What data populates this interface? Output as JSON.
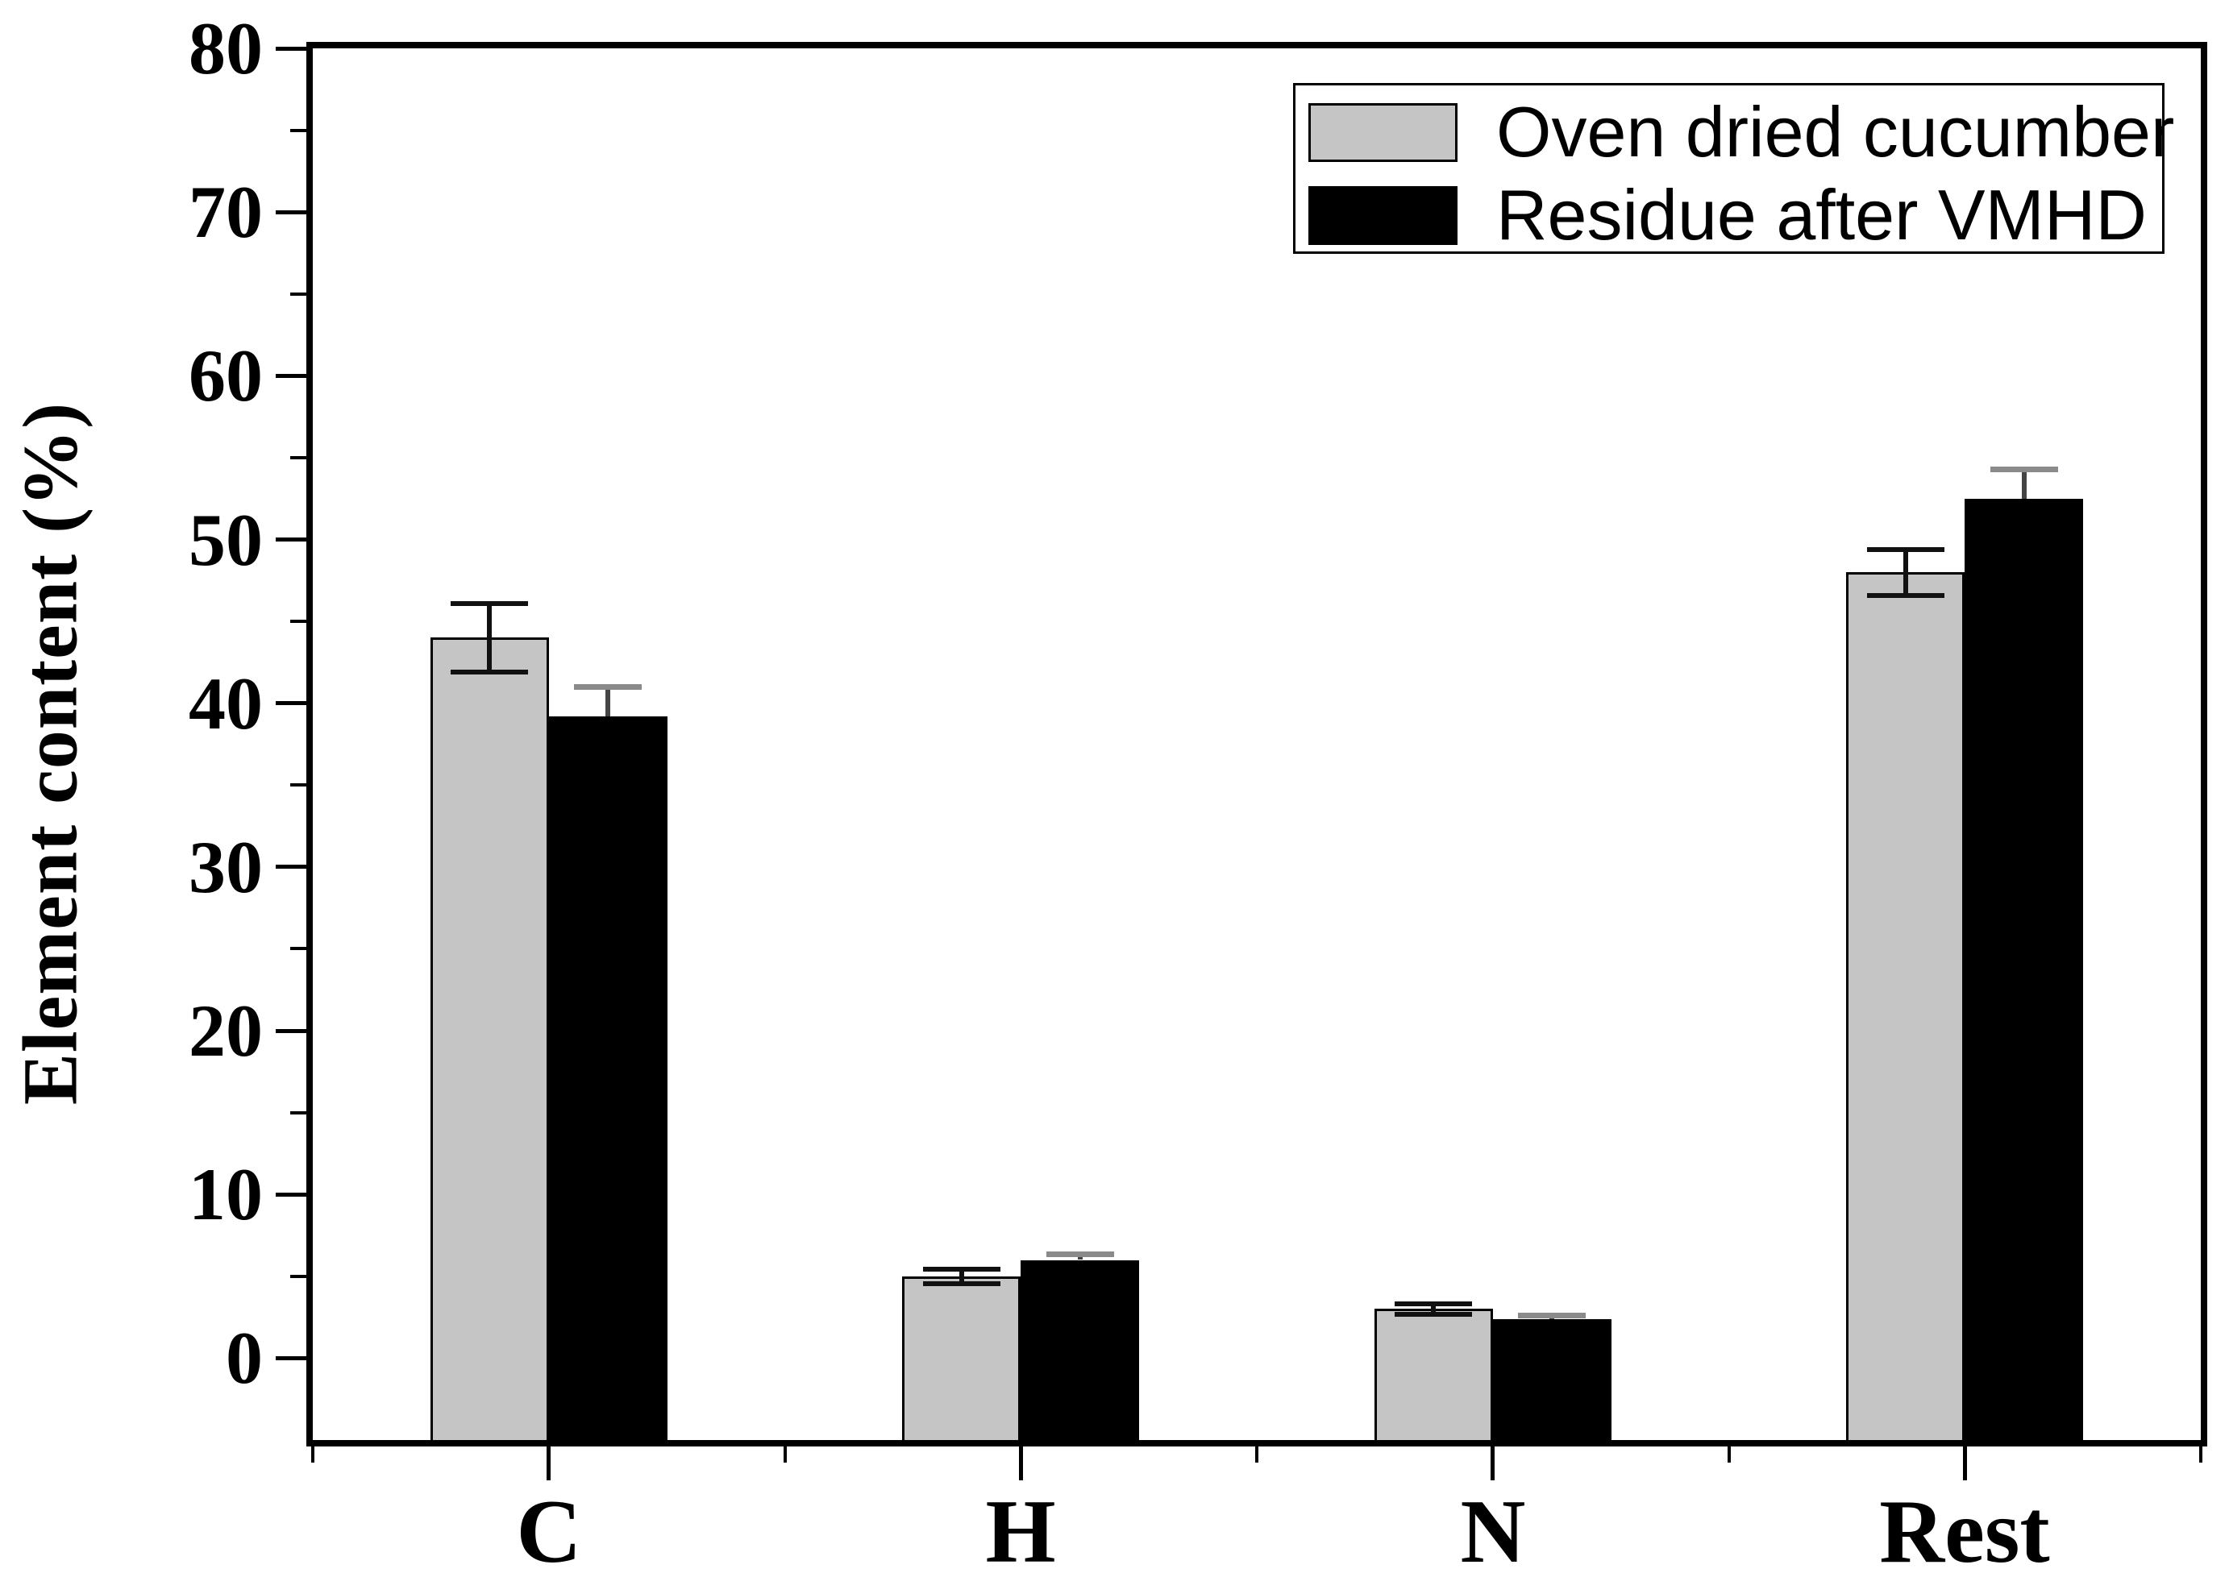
{
  "figure": {
    "background": "#ffffff",
    "axis_color": "#000000"
  },
  "chart_data": {
    "type": "bar",
    "title": "",
    "ylabel": "Element content (%)",
    "xlabel": "",
    "categories": [
      "C",
      "H",
      "N",
      "Rest"
    ],
    "series": [
      {
        "name": "Oven dried cucumber",
        "color": "#c5c5c5",
        "outline": "#000000",
        "values": [
          44.0,
          5.0,
          3.0,
          48.0
        ],
        "errors": [
          2.1,
          0.45,
          0.3,
          1.4
        ],
        "error_stem_color": "#111111",
        "error_cap_color": "#111111",
        "error_caps": "both"
      },
      {
        "name": "Residue after VMHD",
        "color": "#000000",
        "outline": "#000000",
        "values": [
          39.2,
          6.0,
          2.4,
          52.5
        ],
        "errors": [
          1.8,
          0.35,
          0.2,
          1.8
        ],
        "error_stem_color": "#444444",
        "error_cap_color": "#8a8a8a",
        "error_caps": "top"
      }
    ],
    "y_axis": {
      "min": -5,
      "max": 80,
      "major_tick_values": [
        0,
        10,
        20,
        30,
        40,
        50,
        60,
        70,
        80
      ],
      "major_tick_labels": [
        "0",
        "10",
        "20",
        "30",
        "40",
        "50",
        "60",
        "70",
        "80"
      ],
      "minor_tick_values": [
        5,
        15,
        25,
        35,
        45,
        55,
        65,
        75
      ]
    },
    "legend_position": "top-right",
    "grid": false,
    "bar_baseline": "axis bottom (-5)"
  }
}
